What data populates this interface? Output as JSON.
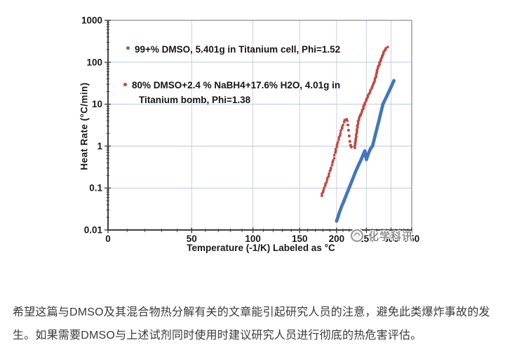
{
  "watermark": {
    "text": "化学科讯"
  },
  "caption": {
    "lines": [
      "希望这篇与DMSO及其混合物热分解有关的文章能引起研究人员的注意，避免此类爆炸事故的发",
      "生。如果需要DMSO与上述试剂同时使用时建议研究人员进行彻底的热危害评估。"
    ]
  },
  "chart_data": {
    "type": "scatter",
    "title": "",
    "xlabel": "Temperature (-1/K) Labeled as °C",
    "ylabel": "Heat Rate (°C/min)",
    "x_scale": "reciprocal_kelvin_labeled_celsius",
    "y_scale": "log",
    "x_domain_c": [
      0,
      350
    ],
    "x_ticks_c": [
      0,
      50,
      100,
      150,
      200,
      250,
      300,
      350
    ],
    "x_minor_step_c": 10,
    "ylim": [
      0.01,
      1000
    ],
    "y_ticks": [
      1000,
      100,
      10,
      1,
      0.1,
      0.01
    ],
    "y_tick_labels": [
      "1000",
      "100",
      "10",
      "1",
      "0.1",
      "0.01"
    ],
    "grid": true,
    "legend_position": "top-left-inside",
    "colors": {
      "horizontal_grid": "#b9cbe2",
      "vertical_grid": "#ccd2d9",
      "axis": "#3f3f3f",
      "frame": "#8f8f8f",
      "tick_label": "#1a1a1a"
    },
    "legend": [
      {
        "lines": [
          "99+% DMSO, 5.401g in Titanium cell, Phi=1.52"
        ]
      },
      {
        "lines": [
          "80% DMSO+2.4 % NaBH4+17.6% H2O, 4.01g in",
          "Titanium bomb, Phi=1.38"
        ]
      }
    ],
    "points_format": [
      "temperature_c",
      "heat_rate_c_per_min"
    ],
    "series": [
      {
        "name": "99+% DMSO, 5.401g in Titanium cell, Phi=1.52",
        "color": "#4377b9",
        "marker": "dot",
        "dot_radius": 2.4,
        "segments": [
          {
            "dense": true,
            "spacing": 1.6,
            "points": [
              [
                200,
                0.0163
              ],
              [
                201,
                0.018
              ],
              [
                202.3,
                0.0205
              ],
              [
                203.5,
                0.024
              ],
              [
                205,
                0.028
              ],
              [
                208,
                0.037
              ],
              [
                211,
                0.0475
              ],
              [
                214,
                0.0615
              ],
              [
                217,
                0.0795
              ],
              [
                220,
                0.102
              ],
              [
                223,
                0.131
              ],
              [
                226,
                0.168
              ],
              [
                229,
                0.215
              ],
              [
                232,
                0.272
              ],
              [
                235,
                0.335
              ],
              [
                238,
                0.41
              ],
              [
                241,
                0.5
              ],
              [
                244,
                0.62
              ],
              [
                247,
                0.77
              ],
              [
                250,
                0.48
              ],
              [
                250.5,
                0.5
              ],
              [
                253,
                0.62
              ],
              [
                255,
                0.73
              ],
              [
                258,
                0.88
              ],
              [
                261.5,
                1.0
              ],
              [
                265,
                1.47
              ],
              [
                270,
                2.54
              ],
              [
                275,
                4.4
              ],
              [
                280,
                7.6
              ],
              [
                282.5,
                10
              ],
              [
                287,
                12.7
              ],
              [
                292,
                16.7
              ],
              [
                297,
                21.8
              ],
              [
                302,
                28.6
              ],
              [
                306.5,
                36.5
              ]
            ]
          }
        ]
      },
      {
        "name": "80% DMSO+2.4 % NaBH4+17.6% H2O, 4.01g in Titanium bomb, Phi=1.38",
        "color": "#bf4a44",
        "marker": "dot",
        "dot_radius": 1.9,
        "segments": [
          {
            "dense": true,
            "spacing": 3.2,
            "points": [
              [
                178.5,
                0.066
              ],
              [
                180,
                0.08
              ],
              [
                182,
                0.1
              ],
              [
                184,
                0.125
              ],
              [
                186,
                0.155
              ],
              [
                188,
                0.195
              ],
              [
                190,
                0.25
              ],
              [
                192,
                0.31
              ],
              [
                194,
                0.4
              ],
              [
                196,
                0.52
              ],
              [
                198,
                0.7
              ],
              [
                200,
                0.95
              ],
              [
                202,
                1.25
              ],
              [
                204,
                1.6
              ],
              [
                206,
                2.05
              ],
              [
                208,
                2.6
              ],
              [
                210,
                3.2
              ],
              [
                211.5,
                3.7
              ],
              [
                213,
                4.15
              ],
              [
                214.5,
                4.4
              ],
              [
                216,
                4.3
              ],
              [
                217,
                4.0
              ]
            ]
          },
          {
            "dense": false,
            "points": [
              [
                217.8,
                3.2
              ],
              [
                218.8,
                2.4
              ],
              [
                220,
                1.75
              ],
              [
                221,
                1.3
              ],
              [
                222.2,
                1.05
              ],
              [
                223.5,
                0.95
              ]
            ]
          },
          {
            "dense": true,
            "spacing": 2.3,
            "points": [
              [
                229,
                0.92
              ],
              [
                230,
                1.15
              ],
              [
                231,
                1.45
              ],
              [
                232,
                1.85
              ],
              [
                233,
                2.3
              ],
              [
                234,
                3.0
              ],
              [
                235.5,
                3.9
              ],
              [
                237,
                4.7
              ],
              [
                239,
                5.4
              ],
              [
                241,
                6.2
              ],
              [
                244,
                8.0
              ],
              [
                246.5,
                10
              ],
              [
                249,
                11.9
              ],
              [
                252,
                14.8
              ],
              [
                255,
                17.8
              ],
              [
                258,
                21.5
              ],
              [
                261,
                26
              ],
              [
                264,
                32
              ],
              [
                267,
                41
              ],
              [
                269,
                50
              ],
              [
                271.5,
                71
              ],
              [
                274,
                83
              ],
              [
                277,
                105
              ],
              [
                280,
                130
              ],
              [
                283,
                160
              ],
              [
                286,
                190
              ],
              [
                289,
                212
              ],
              [
                292,
                228
              ]
            ]
          }
        ]
      }
    ]
  }
}
